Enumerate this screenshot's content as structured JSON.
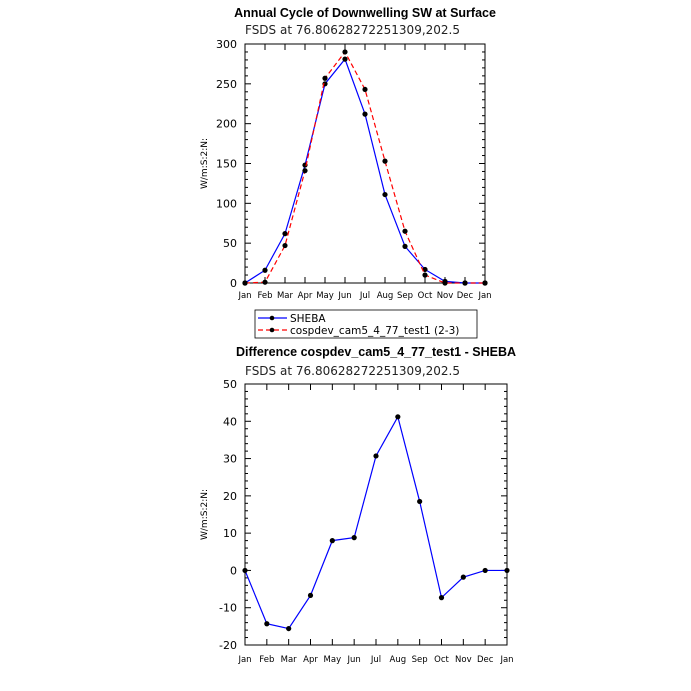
{
  "chart_data": [
    {
      "type": "line",
      "title": "Annual Cycle of Downwelling SW at Surface",
      "subtitle": "FSDS at 76.80628272251309,202.5",
      "ylabel": "W/m:S:2:N:",
      "xlabel": "",
      "categories": [
        "Jan",
        "Feb",
        "Mar",
        "Apr",
        "May",
        "Jun",
        "Jul",
        "Aug",
        "Sep",
        "Oct",
        "Nov",
        "Dec",
        "Jan"
      ],
      "ylim": [
        0,
        300
      ],
      "yticks": [
        0,
        50,
        100,
        150,
        200,
        250,
        300
      ],
      "series": [
        {
          "name": "SHEBA",
          "color": "#0000ff",
          "style": "solid",
          "values": [
            0,
            16,
            62,
            148,
            250,
            281,
            212,
            111,
            46,
            17,
            2,
            0,
            0
          ]
        },
        {
          "name": "cospdev_cam5_4_77_test1 (2-3)",
          "color": "#ff0000",
          "style": "dashed",
          "values": [
            0,
            1,
            47,
            141,
            257,
            290,
            243,
            153,
            65,
            10,
            0,
            0,
            0
          ]
        }
      ]
    },
    {
      "type": "line",
      "title": "Difference cospdev_cam5_4_77_test1 - SHEBA",
      "subtitle": "FSDS at 76.80628272251309,202.5",
      "ylabel": "W/m:S:2:N:",
      "xlabel": "",
      "categories": [
        "Jan",
        "Feb",
        "Mar",
        "Apr",
        "May",
        "Jun",
        "Jul",
        "Aug",
        "Sep",
        "Oct",
        "Nov",
        "Dec",
        "Jan"
      ],
      "ylim": [
        -20,
        50
      ],
      "yticks": [
        -20,
        -10,
        0,
        10,
        20,
        30,
        40,
        50
      ],
      "series": [
        {
          "name": "Difference",
          "color": "#0000ff",
          "style": "solid",
          "values": [
            0,
            -14.3,
            -15.6,
            -6.7,
            8,
            8.8,
            30.7,
            41.2,
            18.5,
            -7.3,
            -1.8,
            0,
            0
          ]
        }
      ]
    }
  ]
}
